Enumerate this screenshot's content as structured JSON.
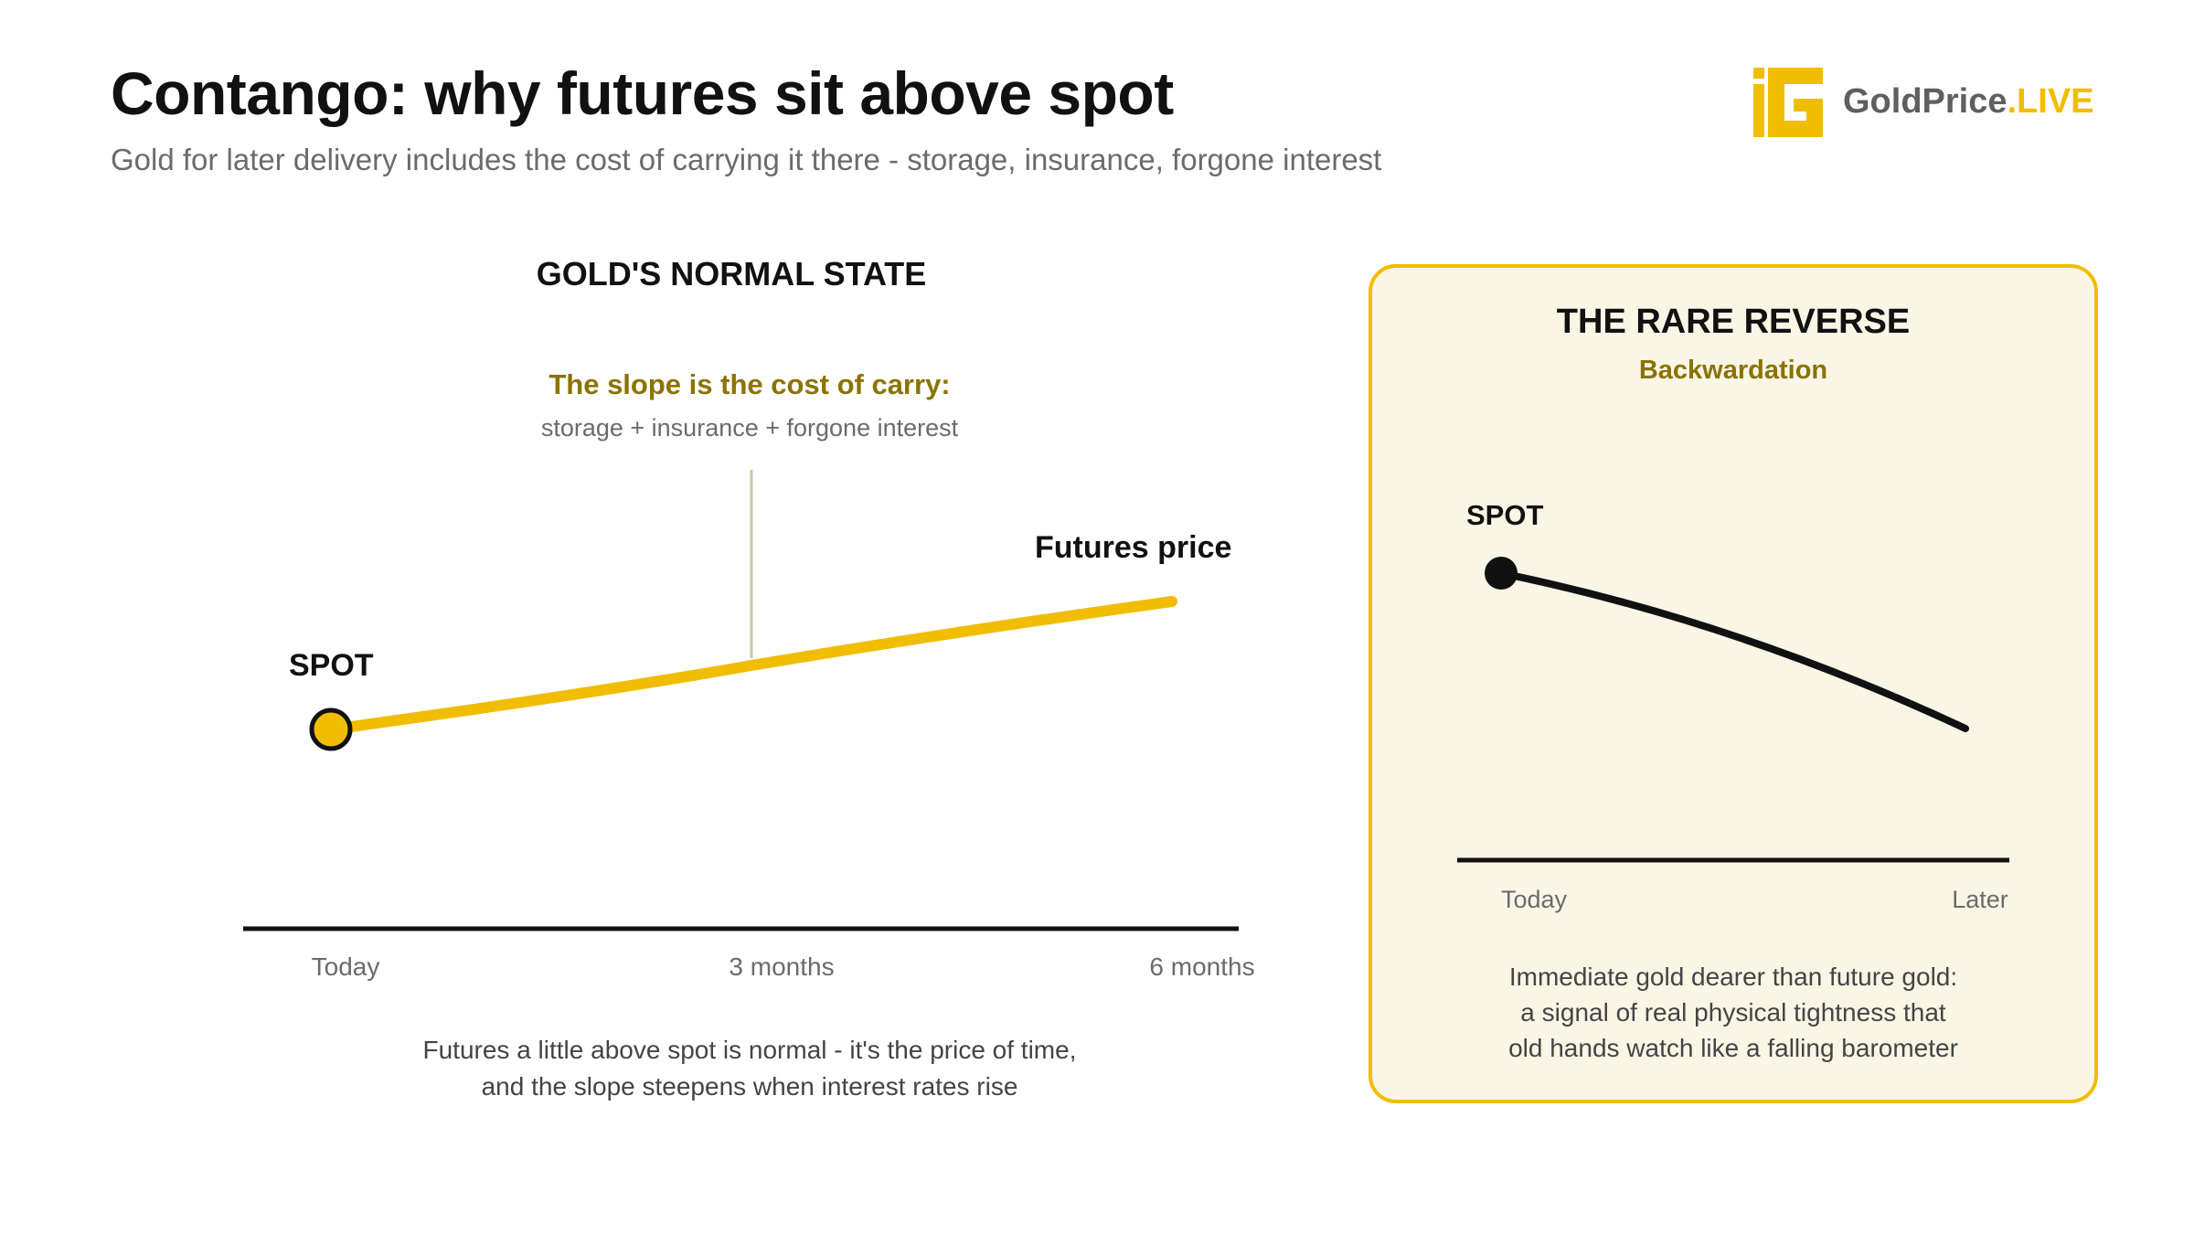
{
  "header": {
    "title": "Contango: why futures sit above spot",
    "subtitle": "Gold for later delivery includes the cost of carrying it there - storage, insurance, forgone interest"
  },
  "logo": {
    "name": "GoldPrice",
    "accent": ".LIVE",
    "icon": "gold-g-logo-icon"
  },
  "colors": {
    "gold": "#f0bd00",
    "olive": "#8a7300",
    "ink": "#111111",
    "muted": "#6b6b6b",
    "panel_bg": "#f9f6e6"
  },
  "contango": {
    "heading": "GOLD'S NORMAL STATE",
    "annotation_title": "The slope is the cost of carry:",
    "annotation_detail": "storage + insurance + forgone interest",
    "spot_label": "SPOT",
    "futures_label": "Futures price",
    "x_ticks": [
      "Today",
      "3 months",
      "6 months"
    ],
    "caption_line1": "Futures a little above spot is normal - it's the price of time,",
    "caption_line2": "and the slope steepens when interest rates rise"
  },
  "backwardation": {
    "heading": "THE RARE REVERSE",
    "subheading": "Backwardation",
    "spot_label": "SPOT",
    "x_ticks": [
      "Today",
      "Later"
    ],
    "caption_line1": "Immediate gold dearer than future gold:",
    "caption_line2": "a signal of real physical tightness that",
    "caption_line3": "old hands watch like a falling barometer"
  }
}
